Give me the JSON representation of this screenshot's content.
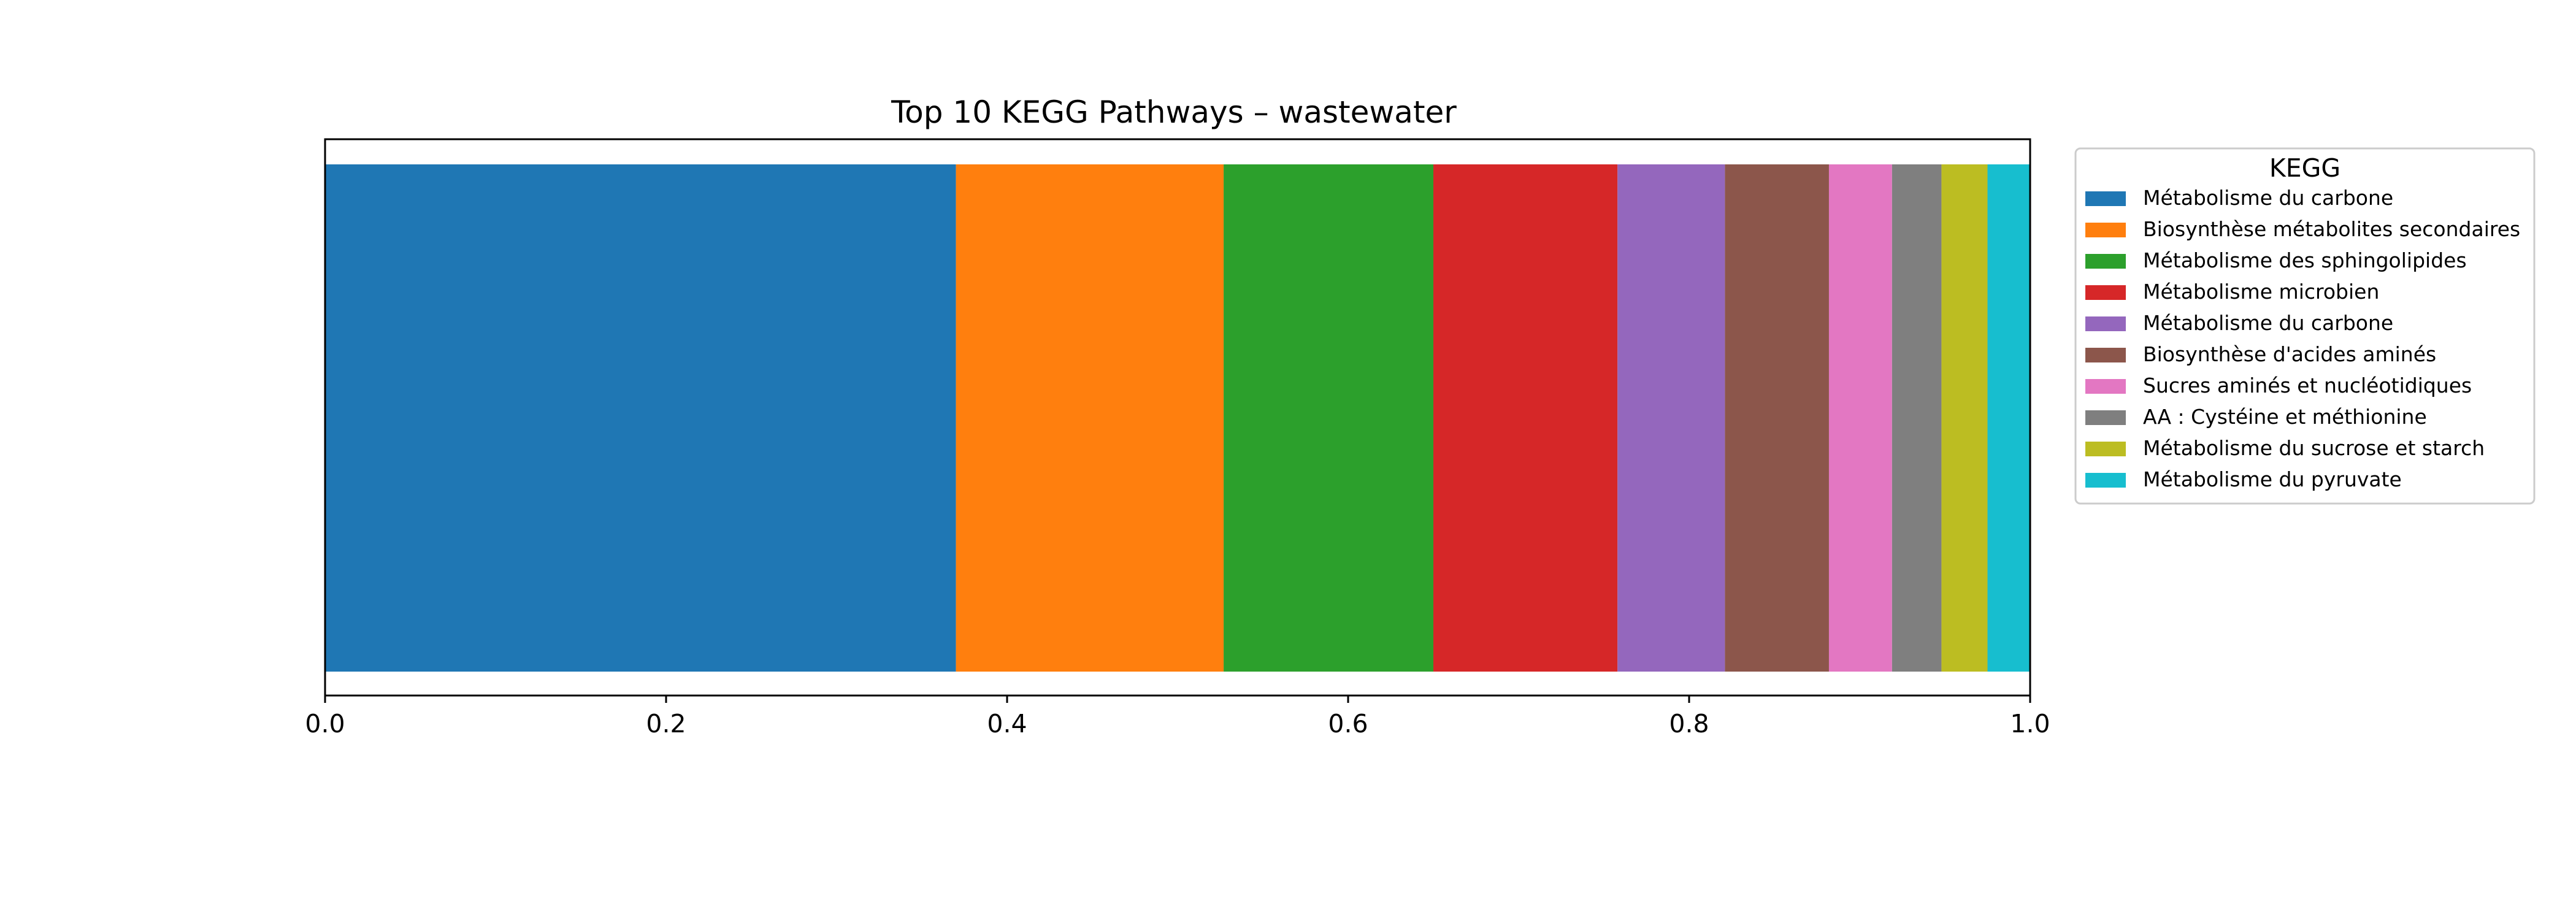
{
  "chart_data": {
    "type": "bar",
    "orientation": "horizontal-stacked",
    "title": "Top 10 KEGG Pathways – wastewater",
    "xlabel": "",
    "ylabel": "",
    "xlim": [
      0,
      1.0
    ],
    "x_ticks": [
      "0.0",
      "0.2",
      "0.4",
      "0.6",
      "0.8",
      "1.0"
    ],
    "grid": false,
    "legend": {
      "title": "KEGG",
      "placement": "outside-right-top"
    },
    "series": [
      {
        "name": "Métabolisme du carbone",
        "value": 0.37,
        "color": "#1f77b4"
      },
      {
        "name": "Biosynthèse métabolites secondaires",
        "value": 0.157,
        "color": "#ff7f0e"
      },
      {
        "name": "Métabolisme des sphingolipides",
        "value": 0.123,
        "color": "#2ca02c"
      },
      {
        "name": "Métabolisme microbien",
        "value": 0.108,
        "color": "#d62728"
      },
      {
        "name": "Métabolisme du carbone",
        "value": 0.063,
        "color": "#9467bd"
      },
      {
        "name": "Biosynthèse d'acides aminés",
        "value": 0.061,
        "color": "#8c564b"
      },
      {
        "name": "Sucres aminés et nucléotidiques",
        "value": 0.037,
        "color": "#e377c2"
      },
      {
        "name": "AA : Cystéine et méthionine",
        "value": 0.029,
        "color": "#7f7f7f"
      },
      {
        "name": "Métabolisme du sucrose et starch",
        "value": 0.027,
        "color": "#bcbd22"
      },
      {
        "name": "Métabolisme du pyruvate",
        "value": 0.025,
        "color": "#17becf"
      }
    ]
  }
}
